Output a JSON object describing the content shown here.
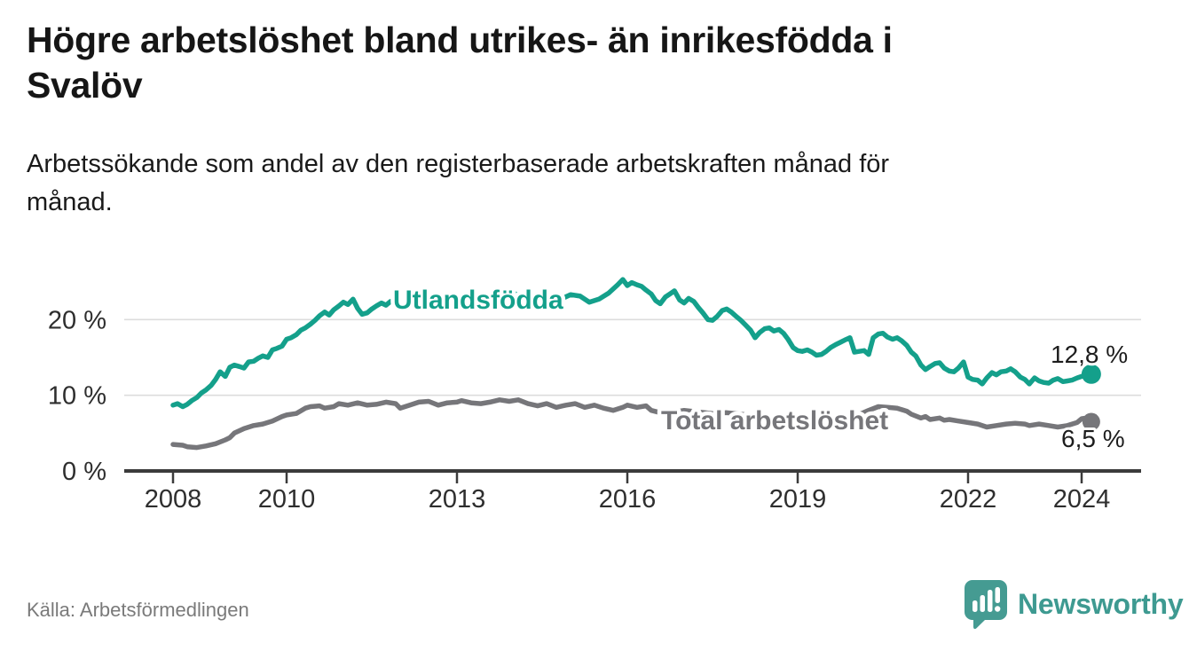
{
  "header": {
    "title": "Högre arbetslöshet bland utrikes- än inrikesfödda i\nSvalöv",
    "subtitle": "Arbetssökande som andel av den registerbaserade arbetskraften månad för\nmånad."
  },
  "footer": {
    "source": "Källa: Arbetsförmedlingen",
    "logo_text": "Newsworthy"
  },
  "colors": {
    "accent_teal": "#14a08b",
    "series_gray": "#76767a",
    "logo_teal": "#459b92",
    "grid": "#dcdcdc",
    "axis": "#3b3b3b",
    "tick_label": "#2e2e2e",
    "value_label": "#1d1d1d"
  },
  "chart_data": {
    "type": "line",
    "title": "Högre arbetslöshet bland utrikes- än inrikesfödda i Svalöv",
    "subtitle": "Arbetssökande som andel av den registerbaserade arbetskraften månad för månad.",
    "source": "Källa: Arbetsförmedlingen",
    "x_axis": {
      "range": [
        2007.1,
        2025.1
      ],
      "ticks": [
        {
          "v": 2008,
          "label": "2008"
        },
        {
          "v": 2010,
          "label": "2010"
        },
        {
          "v": 2013,
          "label": "2013"
        },
        {
          "v": 2016,
          "label": "2016"
        },
        {
          "v": 2019,
          "label": "2019"
        },
        {
          "v": 2022,
          "label": "2022"
        },
        {
          "v": 2024,
          "label": "2024"
        }
      ]
    },
    "y_axis": {
      "range": [
        0,
        28
      ],
      "unit": "%",
      "grid": true,
      "ticks": [
        {
          "v": 0,
          "label": "0 %"
        },
        {
          "v": 10,
          "label": "10 %"
        },
        {
          "v": 20,
          "label": "20 %"
        }
      ]
    },
    "legend_position": "inline-labels",
    "series": [
      {
        "name": "Utlandsfödda",
        "color": "#14a08b",
        "end_dot": true,
        "end_value": 12.8,
        "end_label": "12,8 %",
        "points": [
          [
            2008.0,
            8.7
          ],
          [
            2008.08,
            8.9
          ],
          [
            2008.17,
            8.5
          ],
          [
            2008.25,
            8.8
          ],
          [
            2008.33,
            9.3
          ],
          [
            2008.42,
            9.7
          ],
          [
            2008.5,
            10.3
          ],
          [
            2008.58,
            10.7
          ],
          [
            2008.67,
            11.3
          ],
          [
            2008.75,
            12.1
          ],
          [
            2008.83,
            13.1
          ],
          [
            2008.92,
            12.5
          ],
          [
            2009.0,
            13.7
          ],
          [
            2009.08,
            14.0
          ],
          [
            2009.17,
            13.8
          ],
          [
            2009.25,
            13.6
          ],
          [
            2009.33,
            14.4
          ],
          [
            2009.42,
            14.5
          ],
          [
            2009.5,
            14.9
          ],
          [
            2009.58,
            15.2
          ],
          [
            2009.67,
            15.0
          ],
          [
            2009.75,
            16.0
          ],
          [
            2009.83,
            16.2
          ],
          [
            2009.92,
            16.5
          ],
          [
            2010.0,
            17.4
          ],
          [
            2010.08,
            17.6
          ],
          [
            2010.17,
            18.0
          ],
          [
            2010.25,
            18.6
          ],
          [
            2010.33,
            18.9
          ],
          [
            2010.42,
            19.4
          ],
          [
            2010.5,
            19.9
          ],
          [
            2010.58,
            20.5
          ],
          [
            2010.67,
            21.0
          ],
          [
            2010.75,
            20.6
          ],
          [
            2010.83,
            21.3
          ],
          [
            2010.92,
            21.8
          ],
          [
            2011.0,
            22.3
          ],
          [
            2011.08,
            22.0
          ],
          [
            2011.17,
            22.7
          ],
          [
            2011.25,
            21.5
          ],
          [
            2011.33,
            20.7
          ],
          [
            2011.42,
            20.9
          ],
          [
            2011.5,
            21.4
          ],
          [
            2011.58,
            21.8
          ],
          [
            2011.67,
            22.2
          ],
          [
            2011.75,
            21.9
          ],
          [
            2011.83,
            22.4
          ],
          [
            2011.92,
            22.1
          ],
          [
            2012.0,
            21.8
          ],
          [
            2012.17,
            22.4
          ],
          [
            2012.33,
            21.9
          ],
          [
            2012.5,
            22.6
          ],
          [
            2012.67,
            22.2
          ],
          [
            2012.83,
            22.7
          ],
          [
            2013.0,
            22.3
          ],
          [
            2013.17,
            22.0
          ],
          [
            2013.33,
            22.8
          ],
          [
            2013.5,
            23.2
          ],
          [
            2013.67,
            22.6
          ],
          [
            2013.83,
            22.9
          ],
          [
            2014.0,
            23.5
          ],
          [
            2014.17,
            22.9
          ],
          [
            2014.33,
            22.5
          ],
          [
            2014.5,
            22.8
          ],
          [
            2014.67,
            23.1
          ],
          [
            2014.83,
            22.7
          ],
          [
            2015.0,
            23.3
          ],
          [
            2015.17,
            23.1
          ],
          [
            2015.33,
            22.3
          ],
          [
            2015.5,
            22.7
          ],
          [
            2015.67,
            23.5
          ],
          [
            2015.83,
            24.6
          ],
          [
            2015.92,
            25.3
          ],
          [
            2016.0,
            24.5
          ],
          [
            2016.08,
            24.9
          ],
          [
            2016.17,
            24.6
          ],
          [
            2016.25,
            24.4
          ],
          [
            2016.33,
            23.9
          ],
          [
            2016.42,
            23.4
          ],
          [
            2016.5,
            22.5
          ],
          [
            2016.58,
            22.1
          ],
          [
            2016.67,
            23.0
          ],
          [
            2016.75,
            23.4
          ],
          [
            2016.83,
            23.8
          ],
          [
            2016.92,
            22.6
          ],
          [
            2017.0,
            22.2
          ],
          [
            2017.08,
            22.8
          ],
          [
            2017.17,
            22.4
          ],
          [
            2017.25,
            21.6
          ],
          [
            2017.33,
            20.9
          ],
          [
            2017.42,
            20.0
          ],
          [
            2017.5,
            19.9
          ],
          [
            2017.58,
            20.4
          ],
          [
            2017.67,
            21.2
          ],
          [
            2017.75,
            21.4
          ],
          [
            2017.83,
            21.0
          ],
          [
            2017.92,
            20.4
          ],
          [
            2018.0,
            19.9
          ],
          [
            2018.08,
            19.3
          ],
          [
            2018.17,
            18.6
          ],
          [
            2018.25,
            17.6
          ],
          [
            2018.33,
            18.3
          ],
          [
            2018.42,
            18.8
          ],
          [
            2018.5,
            18.9
          ],
          [
            2018.58,
            18.5
          ],
          [
            2018.67,
            18.7
          ],
          [
            2018.75,
            18.2
          ],
          [
            2018.83,
            17.4
          ],
          [
            2018.92,
            16.3
          ],
          [
            2019.0,
            15.9
          ],
          [
            2019.08,
            15.8
          ],
          [
            2019.17,
            16.0
          ],
          [
            2019.25,
            15.7
          ],
          [
            2019.33,
            15.3
          ],
          [
            2019.42,
            15.4
          ],
          [
            2019.5,
            15.8
          ],
          [
            2019.58,
            16.3
          ],
          [
            2019.67,
            16.7
          ],
          [
            2019.75,
            17.0
          ],
          [
            2019.83,
            17.3
          ],
          [
            2019.92,
            17.6
          ],
          [
            2020.0,
            15.7
          ],
          [
            2020.08,
            15.8
          ],
          [
            2020.17,
            15.9
          ],
          [
            2020.25,
            15.4
          ],
          [
            2020.33,
            17.6
          ],
          [
            2020.42,
            18.1
          ],
          [
            2020.5,
            18.2
          ],
          [
            2020.58,
            17.7
          ],
          [
            2020.67,
            17.4
          ],
          [
            2020.75,
            17.6
          ],
          [
            2020.83,
            17.2
          ],
          [
            2020.92,
            16.6
          ],
          [
            2021.0,
            15.7
          ],
          [
            2021.08,
            15.2
          ],
          [
            2021.17,
            14.0
          ],
          [
            2021.25,
            13.4
          ],
          [
            2021.33,
            13.8
          ],
          [
            2021.42,
            14.2
          ],
          [
            2021.5,
            14.3
          ],
          [
            2021.58,
            13.6
          ],
          [
            2021.67,
            13.2
          ],
          [
            2021.75,
            13.1
          ],
          [
            2021.83,
            13.6
          ],
          [
            2021.92,
            14.4
          ],
          [
            2022.0,
            12.4
          ],
          [
            2022.08,
            12.1
          ],
          [
            2022.17,
            12.0
          ],
          [
            2022.25,
            11.5
          ],
          [
            2022.33,
            12.3
          ],
          [
            2022.42,
            13.0
          ],
          [
            2022.5,
            12.7
          ],
          [
            2022.58,
            13.1
          ],
          [
            2022.67,
            13.2
          ],
          [
            2022.75,
            13.5
          ],
          [
            2022.83,
            13.1
          ],
          [
            2022.92,
            12.4
          ],
          [
            2023.0,
            12.1
          ],
          [
            2023.08,
            11.5
          ],
          [
            2023.17,
            12.3
          ],
          [
            2023.25,
            11.9
          ],
          [
            2023.33,
            11.7
          ],
          [
            2023.42,
            11.6
          ],
          [
            2023.5,
            12.0
          ],
          [
            2023.58,
            12.2
          ],
          [
            2023.67,
            11.8
          ],
          [
            2023.75,
            11.9
          ],
          [
            2023.83,
            12.0
          ],
          [
            2023.92,
            12.3
          ],
          [
            2024.0,
            12.5
          ],
          [
            2024.08,
            12.7
          ],
          [
            2024.17,
            12.8
          ]
        ]
      },
      {
        "name": "Total arbetslöshet",
        "color": "#76767a",
        "end_dot": true,
        "end_value": 6.5,
        "end_label": "6,5 %",
        "points": [
          [
            2008.0,
            3.5
          ],
          [
            2008.17,
            3.4
          ],
          [
            2008.25,
            3.2
          ],
          [
            2008.42,
            3.1
          ],
          [
            2008.58,
            3.3
          ],
          [
            2008.75,
            3.6
          ],
          [
            2008.92,
            4.1
          ],
          [
            2009.0,
            4.4
          ],
          [
            2009.08,
            5.0
          ],
          [
            2009.25,
            5.6
          ],
          [
            2009.42,
            6.0
          ],
          [
            2009.58,
            6.2
          ],
          [
            2009.75,
            6.6
          ],
          [
            2009.92,
            7.2
          ],
          [
            2010.0,
            7.4
          ],
          [
            2010.17,
            7.6
          ],
          [
            2010.33,
            8.3
          ],
          [
            2010.42,
            8.5
          ],
          [
            2010.58,
            8.6
          ],
          [
            2010.67,
            8.3
          ],
          [
            2010.83,
            8.5
          ],
          [
            2010.92,
            8.9
          ],
          [
            2011.08,
            8.7
          ],
          [
            2011.25,
            9.0
          ],
          [
            2011.42,
            8.7
          ],
          [
            2011.58,
            8.8
          ],
          [
            2011.75,
            9.1
          ],
          [
            2011.92,
            8.9
          ],
          [
            2012.0,
            8.3
          ],
          [
            2012.17,
            8.7
          ],
          [
            2012.33,
            9.1
          ],
          [
            2012.5,
            9.2
          ],
          [
            2012.67,
            8.7
          ],
          [
            2012.83,
            9.0
          ],
          [
            2013.0,
            9.1
          ],
          [
            2013.08,
            9.3
          ],
          [
            2013.25,
            9.0
          ],
          [
            2013.42,
            8.9
          ],
          [
            2013.58,
            9.1
          ],
          [
            2013.75,
            9.4
          ],
          [
            2013.92,
            9.2
          ],
          [
            2014.08,
            9.4
          ],
          [
            2014.25,
            8.9
          ],
          [
            2014.42,
            8.6
          ],
          [
            2014.58,
            8.9
          ],
          [
            2014.75,
            8.4
          ],
          [
            2014.92,
            8.7
          ],
          [
            2015.08,
            8.9
          ],
          [
            2015.25,
            8.4
          ],
          [
            2015.42,
            8.7
          ],
          [
            2015.58,
            8.3
          ],
          [
            2015.75,
            8.0
          ],
          [
            2015.92,
            8.4
          ],
          [
            2016.0,
            8.7
          ],
          [
            2016.17,
            8.4
          ],
          [
            2016.33,
            8.6
          ],
          [
            2016.42,
            8.0
          ],
          [
            2016.58,
            7.7
          ],
          [
            2016.75,
            7.8
          ],
          [
            2016.92,
            7.9
          ],
          [
            2017.0,
            8.0
          ],
          [
            2017.25,
            7.8
          ],
          [
            2017.5,
            7.6
          ],
          [
            2017.75,
            7.7
          ],
          [
            2018.0,
            7.5
          ],
          [
            2018.25,
            7.3
          ],
          [
            2018.5,
            7.2
          ],
          [
            2018.75,
            7.0
          ],
          [
            2019.0,
            7.1
          ],
          [
            2019.25,
            7.0
          ],
          [
            2019.5,
            6.9
          ],
          [
            2019.75,
            7.0
          ],
          [
            2020.0,
            7.2
          ],
          [
            2020.25,
            8.0
          ],
          [
            2020.42,
            8.5
          ],
          [
            2020.58,
            8.4
          ],
          [
            2020.75,
            8.3
          ],
          [
            2020.92,
            7.9
          ],
          [
            2021.0,
            7.5
          ],
          [
            2021.17,
            7.0
          ],
          [
            2021.25,
            7.2
          ],
          [
            2021.33,
            6.8
          ],
          [
            2021.5,
            7.0
          ],
          [
            2021.58,
            6.7
          ],
          [
            2021.67,
            6.8
          ],
          [
            2021.83,
            6.6
          ],
          [
            2022.0,
            6.4
          ],
          [
            2022.17,
            6.2
          ],
          [
            2022.33,
            5.8
          ],
          [
            2022.5,
            6.0
          ],
          [
            2022.67,
            6.2
          ],
          [
            2022.83,
            6.3
          ],
          [
            2023.0,
            6.2
          ],
          [
            2023.08,
            6.0
          ],
          [
            2023.25,
            6.2
          ],
          [
            2023.42,
            6.0
          ],
          [
            2023.58,
            5.8
          ],
          [
            2023.75,
            6.0
          ],
          [
            2023.92,
            6.4
          ],
          [
            2024.0,
            6.9
          ],
          [
            2024.08,
            7.0
          ],
          [
            2024.17,
            6.5
          ]
        ]
      }
    ]
  }
}
